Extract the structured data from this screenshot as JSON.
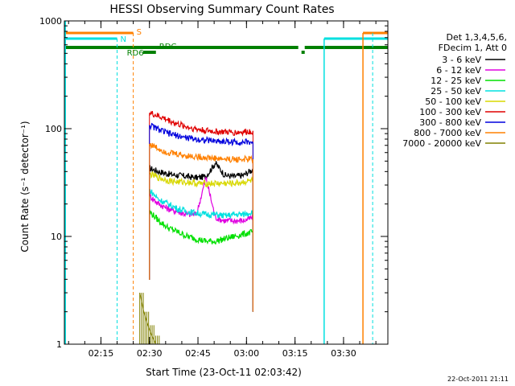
{
  "chart_data": {
    "type": "line",
    "title": "HESSI Observing Summary Count Rates",
    "xlabel": "Start Time (23-Oct-11 02:03:42)",
    "ylabel": "Count Rate (s⁻¹ detector⁻¹)",
    "y_scale": "log",
    "ylim": [
      1,
      1000
    ],
    "xlim": [
      "02:03:42",
      "03:43:42"
    ],
    "x_ticks": [
      "02:15",
      "02:30",
      "02:45",
      "03:00",
      "03:15",
      "03:30"
    ],
    "y_ticks": [
      "1",
      "10",
      "100",
      "1000"
    ],
    "grid": false,
    "legend_position": "right",
    "legend_header": [
      "Det 1,3,4,5,6,",
      "FDecim 1, Att 0"
    ],
    "series": [
      {
        "name": "3 - 6 keV",
        "color": "#000000",
        "start": "02:30",
        "end": "03:02",
        "values": [
          43,
          40,
          38,
          37,
          36,
          35,
          36,
          48,
          37,
          36,
          37,
          42
        ]
      },
      {
        "name": "6 - 12 keV",
        "color": "#e000e0",
        "start": "02:30",
        "end": "03:02",
        "values": [
          24,
          20,
          18,
          17,
          16,
          16,
          35,
          15,
          14,
          14,
          14,
          15
        ]
      },
      {
        "name": "12 - 25 keV",
        "color": "#00e000",
        "start": "02:30",
        "end": "03:02",
        "values": [
          17,
          14,
          12,
          11,
          10,
          9.5,
          9,
          9,
          9.5,
          10,
          10.5,
          11
        ]
      },
      {
        "name": "25 - 50 keV",
        "color": "#00e0e0",
        "start": "02:30",
        "end": "03:02",
        "values": [
          27,
          22,
          20,
          18,
          17,
          16.5,
          16,
          16,
          15.5,
          16,
          16,
          17
        ]
      },
      {
        "name": "50 - 100 keV",
        "color": "#d8d800",
        "start": "02:30",
        "end": "03:02",
        "values": [
          38,
          35,
          33,
          32,
          32,
          31,
          31,
          31,
          31,
          31,
          32,
          33
        ]
      },
      {
        "name": "100 - 300 keV",
        "color": "#e00000",
        "start": "02:30",
        "end": "03:02",
        "values": [
          140,
          130,
          120,
          110,
          104,
          99,
          96,
          94,
          93,
          92,
          93,
          95
        ]
      },
      {
        "name": "300 - 800 keV",
        "color": "#0000dd",
        "start": "02:30",
        "end": "03:02",
        "values": [
          108,
          98,
          90,
          86,
          82,
          80,
          78,
          77,
          76,
          75,
          75,
          75
        ]
      },
      {
        "name": "800 - 7000 keV",
        "color": "#ff8000",
        "start": "02:30",
        "end": "03:02",
        "values": [
          72,
          65,
          60,
          58,
          56,
          55,
          54,
          53,
          52,
          52,
          52,
          52
        ]
      },
      {
        "name": "7000 - 20000 keV",
        "color": "#808000",
        "start": "02:27",
        "end": "02:32",
        "values": [
          3,
          2,
          1.5,
          1.2,
          1
        ]
      }
    ],
    "annotations": [
      {
        "label": "S",
        "color": "#ff8000"
      },
      {
        "label": "N",
        "color": "#00e0e0"
      },
      {
        "label": "RD6",
        "color": "#008000"
      },
      {
        "label": "RDC",
        "color": "#008000"
      }
    ],
    "footer": "22-Oct-2011 21:11"
  }
}
